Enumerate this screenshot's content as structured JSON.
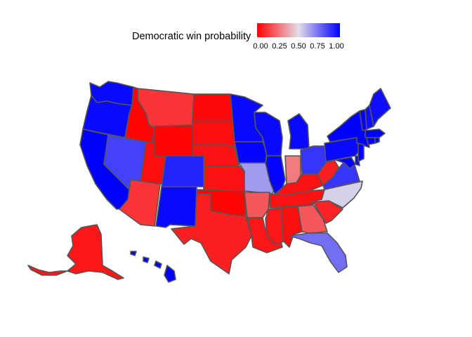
{
  "legend": {
    "title": "Democratic win probability",
    "ticks": [
      "0.00",
      "0.25",
      "0.50",
      "0.75",
      "1.00"
    ],
    "colors": {
      "low": "#ff0000",
      "mid": "#e4dde8",
      "high": "#0000ff"
    }
  },
  "states": [
    {
      "id": "WA",
      "p": 0.98
    },
    {
      "id": "OR",
      "p": 0.98
    },
    {
      "id": "CA",
      "p": 1.0
    },
    {
      "id": "ID",
      "p": 0.01
    },
    {
      "id": "NV",
      "p": 0.85
    },
    {
      "id": "MT",
      "p": 0.12
    },
    {
      "id": "WY",
      "p": 0.01
    },
    {
      "id": "UT",
      "p": 0.03
    },
    {
      "id": "AZ",
      "p": 0.12
    },
    {
      "id": "CO",
      "p": 0.92
    },
    {
      "id": "NM",
      "p": 0.98
    },
    {
      "id": "ND",
      "p": 0.02
    },
    {
      "id": "SD",
      "p": 0.03
    },
    {
      "id": "NE",
      "p": 0.04
    },
    {
      "id": "KS",
      "p": 0.04
    },
    {
      "id": "OK",
      "p": 0.01
    },
    {
      "id": "TX",
      "p": 0.07
    },
    {
      "id": "MN",
      "p": 0.98
    },
    {
      "id": "IA",
      "p": 0.99
    },
    {
      "id": "MO",
      "p": 0.65
    },
    {
      "id": "AR",
      "p": 0.2
    },
    {
      "id": "LA",
      "p": 0.05
    },
    {
      "id": "WI",
      "p": 0.98
    },
    {
      "id": "IL",
      "p": 0.99
    },
    {
      "id": "MI",
      "p": 0.98
    },
    {
      "id": "IN",
      "p": 0.28
    },
    {
      "id": "OH",
      "p": 0.88
    },
    {
      "id": "KY",
      "p": 0.04
    },
    {
      "id": "TN",
      "p": 0.04
    },
    {
      "id": "MS",
      "p": 0.05
    },
    {
      "id": "AL",
      "p": 0.03
    },
    {
      "id": "GA",
      "p": 0.2
    },
    {
      "id": "FL",
      "p": 0.75
    },
    {
      "id": "SC",
      "p": 0.08
    },
    {
      "id": "NC",
      "p": 0.53
    },
    {
      "id": "VA",
      "p": 0.88
    },
    {
      "id": "WV",
      "p": 0.07
    },
    {
      "id": "PA",
      "p": 0.98
    },
    {
      "id": "NY",
      "p": 1.0
    },
    {
      "id": "MD",
      "p": 1.0
    },
    {
      "id": "DE",
      "p": 1.0
    },
    {
      "id": "NJ",
      "p": 1.0
    },
    {
      "id": "CT",
      "p": 1.0
    },
    {
      "id": "RI",
      "p": 1.0
    },
    {
      "id": "MA",
      "p": 1.0
    },
    {
      "id": "VT",
      "p": 1.0
    },
    {
      "id": "NH",
      "p": 0.97
    },
    {
      "id": "ME",
      "p": 0.97
    },
    {
      "id": "AK",
      "p": 0.05
    },
    {
      "id": "HI",
      "p": 1.0
    }
  ]
}
